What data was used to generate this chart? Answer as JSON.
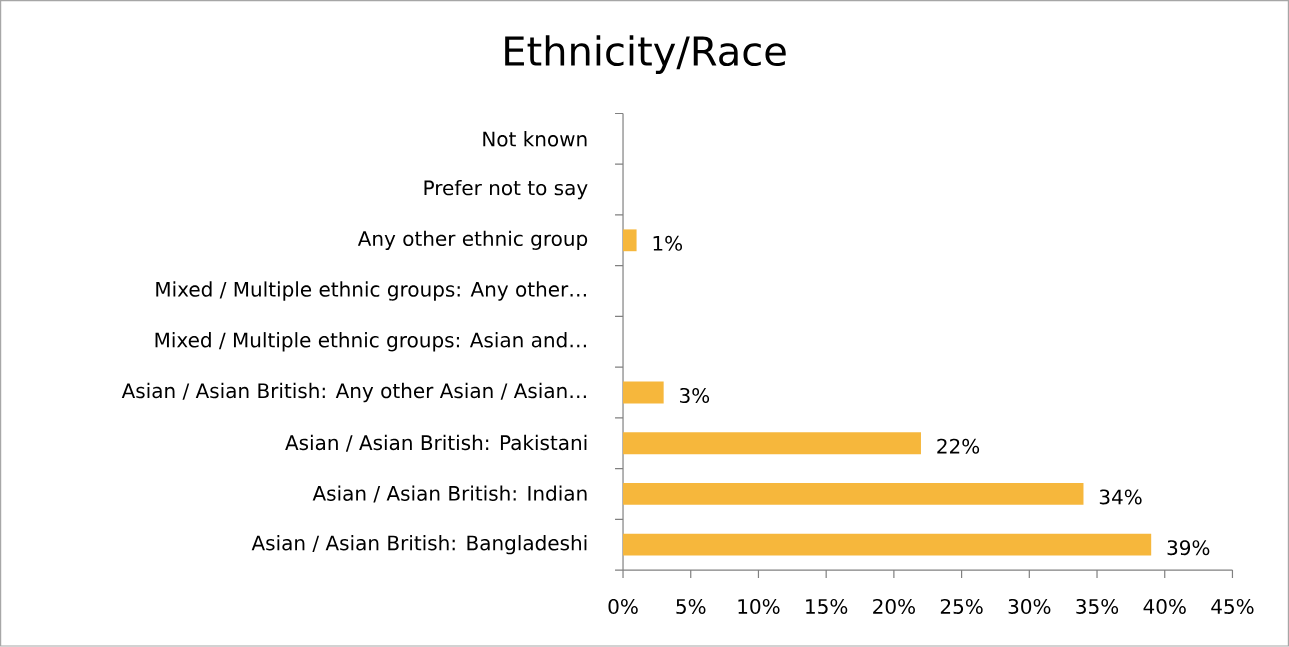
{
  "chart_data": {
    "type": "bar",
    "title": "Ethnicity/Race",
    "orientation": "horizontal",
    "categories": [
      "Not known",
      "Prefer not to say",
      "Any other ethnic group",
      "Mixed / Multiple ethnic groups: Any other…",
      "Mixed / Multiple ethnic groups: Asian and…",
      "Asian / Asian British: Any other Asian / Asian…",
      "Asian / Asian British: Pakistani",
      "Asian / Asian British: Indian",
      "Asian / Asian British: Bangladeshi"
    ],
    "values": [
      0,
      0,
      1,
      0,
      0,
      3,
      22,
      34,
      39
    ],
    "value_labels": [
      null,
      null,
      "1%",
      null,
      null,
      "3%",
      "22%",
      "34%",
      "39%"
    ],
    "color": "#f6b73c",
    "xlim": [
      0,
      45
    ],
    "xticks": [
      {
        "value": 0,
        "label": "0%"
      },
      {
        "value": 5,
        "label": "5%"
      },
      {
        "value": 10,
        "label": "10%"
      },
      {
        "value": 15,
        "label": "15%"
      },
      {
        "value": 20,
        "label": "20%"
      },
      {
        "value": 25,
        "label": "25%"
      },
      {
        "value": 30,
        "label": "30%"
      },
      {
        "value": 35,
        "label": "35%"
      },
      {
        "value": 40,
        "label": "40%"
      },
      {
        "value": 45,
        "label": "45%"
      }
    ],
    "grid": false
  }
}
